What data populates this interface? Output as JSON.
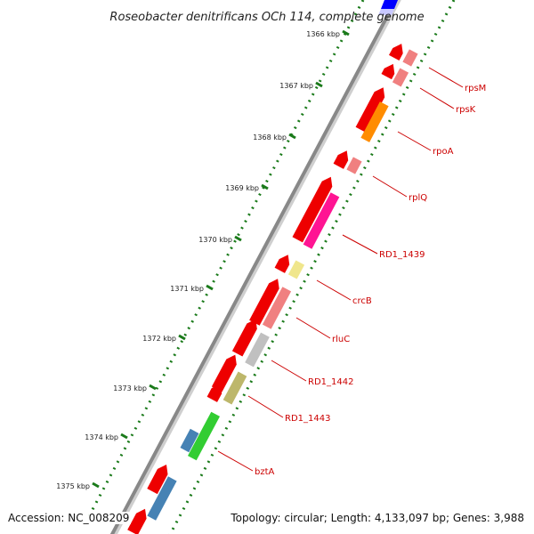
{
  "title": "Roseobacter denitrificans OCh 114, complete genome",
  "footer": {
    "accession": "Accession: NC_008209",
    "topology": "Topology: circular; Length: 4,133,097 bp; Genes: 3,988"
  },
  "colors": {
    "backbone": "#888888",
    "tick_minor": "#1a7a1a",
    "forward_gene": "#ee0000",
    "label": "#cc0000"
  },
  "ticks": [
    {
      "label": "1366 kbp"
    },
    {
      "label": "1367 kbp"
    },
    {
      "label": "1368 kbp"
    },
    {
      "label": "1369 kbp"
    },
    {
      "label": "1370 kbp"
    },
    {
      "label": "1371 kbp"
    },
    {
      "label": "1372 kbp"
    },
    {
      "label": "1373 kbp"
    },
    {
      "label": "1374 kbp"
    },
    {
      "label": "1375 kbp"
    }
  ],
  "reverse_genes": [
    {
      "label": "rpsM",
      "color": "#f08080"
    },
    {
      "label": "rpsK",
      "color": "#f08080"
    },
    {
      "label": "rpoA",
      "color": "#ff8c00"
    },
    {
      "label": "rplQ",
      "color": "#f08080"
    },
    {
      "label": "RD1_1439",
      "color": "#ff1493"
    },
    {
      "label": "crcB",
      "color": "#f0e68c"
    },
    {
      "label": "rluC",
      "color": "#f08080"
    },
    {
      "label": "RD1_1442",
      "color": "#c0c0c0"
    },
    {
      "label": "RD1_1443",
      "color": "#bdb76b"
    },
    {
      "label": "bztA",
      "color": "#32cd32"
    },
    {
      "color": "#4682b4"
    },
    {
      "color": "#4682b4"
    }
  ]
}
